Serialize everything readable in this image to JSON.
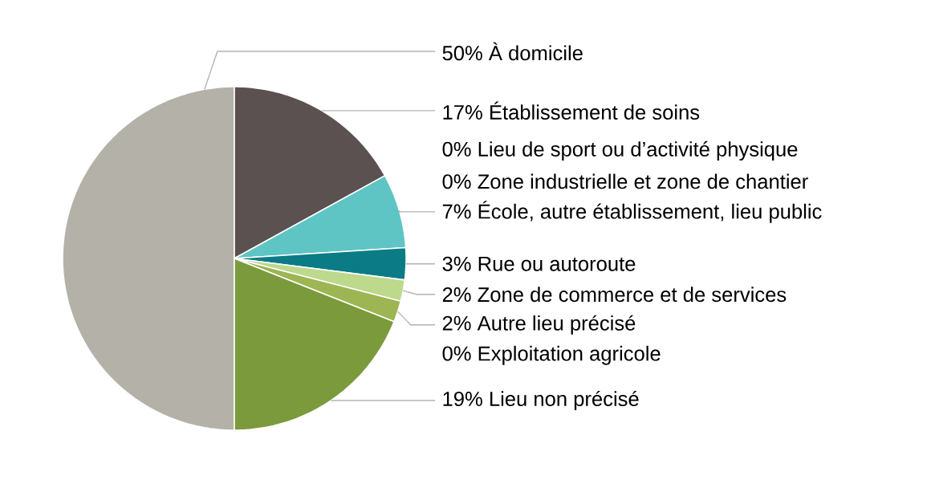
{
  "chart_data": {
    "type": "pie",
    "categories": [
      "À domicile",
      "Établissement de soins",
      "Lieu de sport ou d’activité physique",
      "Zone industrielle et zone de chantier",
      "École, autre établissement, lieu public",
      "Rue ou autoroute",
      "Zone de commerce et de services",
      "Autre lieu précisé",
      "Exploitation agricole",
      "Lieu non précisé"
    ],
    "values": [
      50,
      17,
      0,
      0,
      7,
      3,
      2,
      2,
      0,
      19
    ],
    "value_labels": [
      "50%",
      "17%",
      "0%",
      "0%",
      "7%",
      "3%",
      "2%",
      "2%",
      "0%",
      "19%"
    ],
    "colors": [
      "#b4b1a9",
      "#5b5150",
      "#7a8c3a",
      "#4a6a8a",
      "#5ec4c4",
      "#0b7c86",
      "#bcd98c",
      "#9db552",
      "#6a7f2e",
      "#7b9a3c"
    ]
  }
}
